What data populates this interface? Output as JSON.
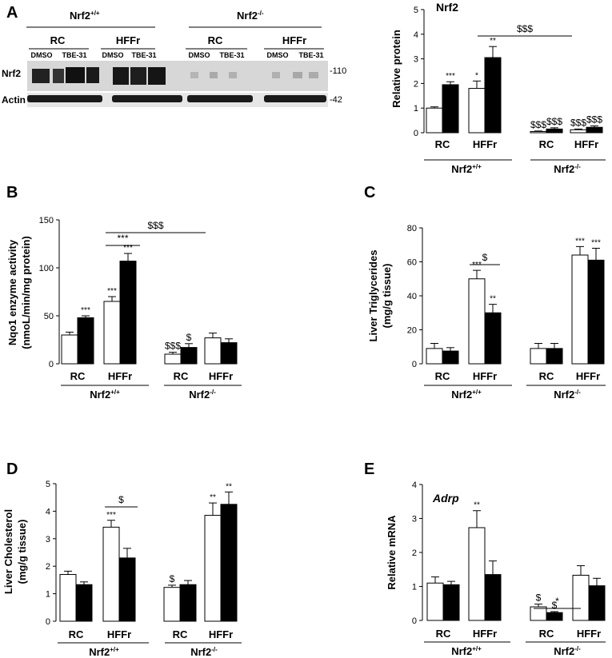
{
  "blot": {
    "panel_label": "A",
    "genotypes": [
      "Nrf2",
      "Nrf2"
    ],
    "genotype_sups": [
      "+/+",
      "-/-"
    ],
    "diets": [
      "RC",
      "HFFr",
      "RC",
      "HFFr"
    ],
    "treatments": [
      "DMSO",
      "TBE-31",
      "DMSO",
      "TBE-31",
      "DMSO",
      "TBE-31",
      "DMSO",
      "TBE-31"
    ],
    "rows": [
      "Nrf2",
      "Actin"
    ],
    "mw_markers": [
      "-110",
      "-42"
    ]
  },
  "chart_data": [
    {
      "panel": "A",
      "type": "bar",
      "title": "Nrf2",
      "ylabel": "Relative protein",
      "ylim": [
        0,
        5
      ],
      "yticks": [
        "0",
        "1",
        "2",
        "3",
        "4",
        "5"
      ],
      "groups": [
        "Nrf2",
        "Nrf2"
      ],
      "group_sups": [
        "+/+",
        "-/-"
      ],
      "categories": [
        "RC",
        "HFFr",
        "RC",
        "HFFr"
      ],
      "series": [
        {
          "values": [
            1.0,
            1.8,
            0.05,
            0.12
          ],
          "errors": [
            0.05,
            0.3,
            0.02,
            0.03
          ],
          "sig": [
            "",
            "*",
            "$$$",
            "$$$"
          ]
        },
        {
          "values": [
            1.95,
            3.05,
            0.15,
            0.22
          ],
          "errors": [
            0.12,
            0.45,
            0.05,
            0.06
          ],
          "sig": [
            "***",
            "**",
            "$$$",
            "$$$"
          ]
        }
      ],
      "brackets": [
        {
          "label": "$$$"
        }
      ]
    },
    {
      "panel": "B",
      "type": "bar",
      "title": "",
      "ylabel": "Nqo1 enzyme activity",
      "ylabel2": "(nmoL/min/mg protein)",
      "ylim": [
        0,
        150
      ],
      "yticks": [
        "0",
        "50",
        "100",
        "150"
      ],
      "groups": [
        "Nrf2",
        "Nrf2"
      ],
      "group_sups": [
        "+/+",
        "-/-"
      ],
      "categories": [
        "RC",
        "HFFr",
        "RC",
        "HFFr"
      ],
      "series": [
        {
          "values": [
            30,
            65,
            10,
            27
          ],
          "errors": [
            3,
            5,
            2,
            5
          ],
          "sig": [
            "",
            "***",
            "$$$",
            ""
          ]
        },
        {
          "values": [
            48,
            107,
            17,
            22
          ],
          "errors": [
            2,
            8,
            4,
            4
          ],
          "sig": [
            "***",
            "***",
            "$",
            ""
          ]
        }
      ],
      "brackets": [
        {
          "label": "***"
        },
        {
          "label": "$$$"
        }
      ]
    },
    {
      "panel": "C",
      "type": "bar",
      "title": "",
      "ylabel": "Liver Triglycerides",
      "ylabel2": "(mg/g tissue)",
      "ylim": [
        0,
        80
      ],
      "yticks": [
        "0",
        "20",
        "40",
        "60",
        "80"
      ],
      "groups": [
        "Nrf2",
        "Nrf2"
      ],
      "group_sups": [
        "+/+",
        "-/-"
      ],
      "categories": [
        "RC",
        "HFFr",
        "RC",
        "HFFr"
      ],
      "series": [
        {
          "values": [
            9,
            50,
            9,
            64
          ],
          "errors": [
            3,
            5,
            3,
            5
          ],
          "sig": [
            "",
            "***",
            "",
            "***"
          ]
        },
        {
          "values": [
            7.5,
            30,
            9,
            61
          ],
          "errors": [
            2,
            5,
            3,
            7
          ],
          "sig": [
            "",
            "**",
            "",
            "***"
          ]
        }
      ],
      "brackets": [
        {
          "label": "$"
        }
      ]
    },
    {
      "panel": "D",
      "type": "bar",
      "title": "",
      "ylabel": "Liver Cholesterol",
      "ylabel2": "(mg/g tissue)",
      "ylim": [
        0,
        5
      ],
      "yticks": [
        "0",
        "1",
        "2",
        "3",
        "4",
        "5"
      ],
      "groups": [
        "Nrf2",
        "Nrf2"
      ],
      "group_sups": [
        "+/+",
        "-/-"
      ],
      "categories": [
        "RC",
        "HFFr",
        "RC",
        "HFFr"
      ],
      "series": [
        {
          "values": [
            1.7,
            3.42,
            1.23,
            3.85
          ],
          "errors": [
            0.12,
            0.25,
            0.08,
            0.45
          ],
          "sig": [
            "",
            "***",
            "$",
            "**"
          ]
        },
        {
          "values": [
            1.33,
            2.3,
            1.33,
            4.25
          ],
          "errors": [
            0.1,
            0.35,
            0.15,
            0.45
          ],
          "sig": [
            "",
            "",
            "",
            "**"
          ]
        }
      ],
      "brackets": [
        {
          "label": "$"
        }
      ]
    },
    {
      "panel": "E",
      "type": "bar",
      "title": "Adrp",
      "ylabel": "Relative mRNA",
      "ylim": [
        0,
        4
      ],
      "yticks": [
        "0",
        "1",
        "2",
        "3",
        "4"
      ],
      "groups": [
        "Nrf2",
        "Nrf2"
      ],
      "group_sups": [
        "+/+",
        "-/-"
      ],
      "categories": [
        "RC",
        "HFFr",
        "RC",
        "HFFr"
      ],
      "series": [
        {
          "values": [
            1.1,
            2.73,
            0.4,
            1.33
          ],
          "errors": [
            0.18,
            0.5,
            0.08,
            0.28
          ],
          "sig": [
            "",
            "**",
            "$",
            ""
          ]
        },
        {
          "values": [
            1.05,
            1.35,
            0.23,
            1.02
          ],
          "errors": [
            0.1,
            0.4,
            0.03,
            0.22
          ],
          "sig": [
            "",
            "",
            "$",
            ""
          ]
        }
      ],
      "brackets": [
        {
          "label": "*"
        }
      ]
    }
  ]
}
